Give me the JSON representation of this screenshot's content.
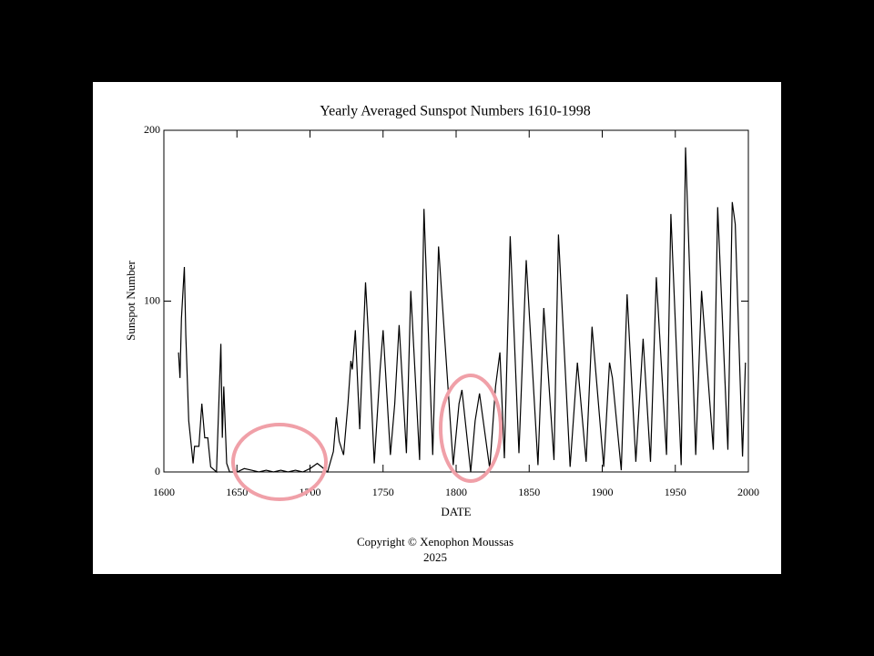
{
  "chart_data": {
    "type": "line",
    "title": "Yearly Averaged Sunspot Numbers 1610-1998",
    "x_label": "DATE",
    "y_label": "Sunspot Number",
    "annotations": [
      "Copyright © Xenophon Moussas",
      "2025"
    ],
    "x": [
      1610,
      1611,
      1612,
      1614,
      1615,
      1617,
      1620,
      1621,
      1624,
      1626,
      1628,
      1630,
      1632,
      1636,
      1639,
      1640,
      1641,
      1643,
      1645,
      1650,
      1655,
      1660,
      1665,
      1670,
      1675,
      1680,
      1685,
      1690,
      1695,
      1700,
      1705,
      1708,
      1712,
      1716,
      1718,
      1720,
      1723,
      1726,
      1728,
      1729,
      1731,
      1734,
      1738,
      1740,
      1744,
      1748,
      1750,
      1755,
      1758,
      1761,
      1766,
      1769,
      1775,
      1778,
      1784,
      1788,
      1798,
      1802,
      1804,
      1810,
      1813,
      1816,
      1823,
      1827,
      1830,
      1833,
      1837,
      1843,
      1848,
      1856,
      1860,
      1867,
      1870,
      1878,
      1883,
      1889,
      1893,
      1901,
      1905,
      1907,
      1913,
      1917,
      1923,
      1928,
      1933,
      1937,
      1944,
      1947,
      1954,
      1957,
      1964,
      1968,
      1976,
      1979,
      1986,
      1989,
      1991,
      1996,
      1998
    ],
    "series": [
      {
        "name": "Yearly sunspot number",
        "color": "#000000",
        "values": [
          70,
          55,
          90,
          120,
          80,
          30,
          5,
          15,
          15,
          40,
          20,
          20,
          3,
          0,
          75,
          20,
          50,
          5,
          0,
          0,
          2,
          1,
          0,
          1,
          0,
          1,
          0,
          1,
          0,
          2,
          5,
          3,
          0,
          12,
          32,
          18,
          10,
          40,
          65,
          60,
          83,
          25,
          111,
          80,
          5,
          60,
          83,
          10,
          40,
          86,
          11,
          106,
          7,
          154,
          10,
          132,
          4,
          40,
          48,
          0,
          30,
          46,
          2,
          50,
          70,
          8,
          138,
          11,
          124,
          4,
          96,
          7,
          139,
          3,
          64,
          6,
          85,
          3,
          64,
          55,
          1,
          104,
          6,
          78,
          6,
          114,
          10,
          151,
          4,
          190,
          10,
          106,
          13,
          155,
          13,
          158,
          145,
          9,
          64
        ]
      }
    ],
    "xlim": [
      1600,
      2000
    ],
    "ylim": [
      0,
      200
    ],
    "xticks": [
      1600,
      1650,
      1700,
      1750,
      1800,
      1850,
      1900,
      1950,
      2000
    ],
    "yticks": [
      0,
      100,
      200
    ]
  }
}
